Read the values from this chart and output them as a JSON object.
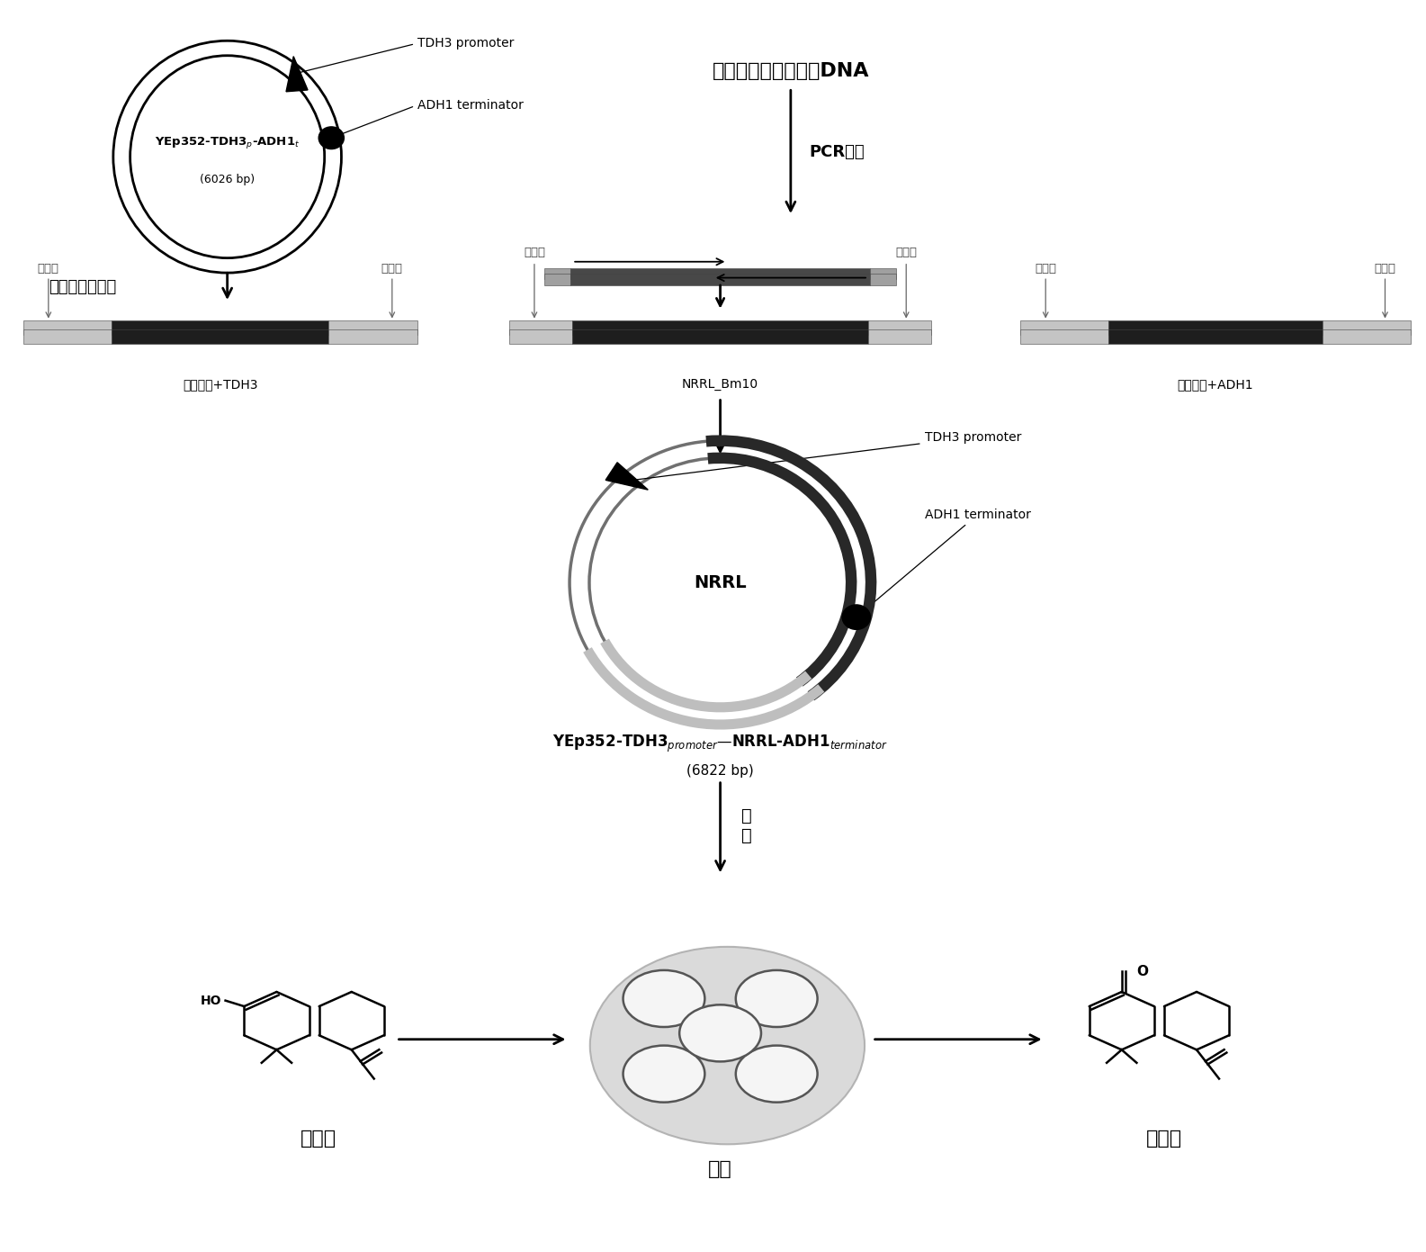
{
  "bg_color": "#ffffff",
  "fig_width": 20.2,
  "fig_height": 17.81
}
